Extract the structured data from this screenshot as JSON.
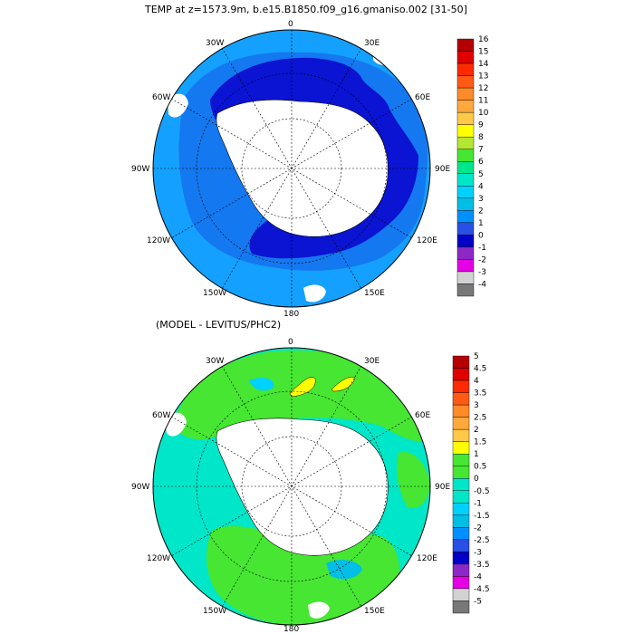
{
  "top_panel": {
    "title": "TEMP at z=1573.9m, b.e15.B1850.f09_g16.gmaniso.002 [31-50]",
    "longitude_labels": [
      "0",
      "30E",
      "60E",
      "90E",
      "120E",
      "150E",
      "180",
      "150W",
      "120W",
      "90W",
      "60W",
      "30W"
    ],
    "colorbar": {
      "labels": [
        "16",
        "15",
        "14",
        "13",
        "12",
        "11",
        "10",
        "9",
        "8",
        "7",
        "6",
        "5",
        "4",
        "3",
        "2",
        "1",
        "0",
        "-1",
        "-2",
        "-3",
        "-4"
      ],
      "colors": [
        "#b40000",
        "#e00000",
        "#ff2a00",
        "#ff5a14",
        "#ff8a28",
        "#ffa83c",
        "#ffc846",
        "#ffff00",
        "#b4e632",
        "#46e632",
        "#00e68c",
        "#00e6c8",
        "#00d2ff",
        "#00bee6",
        "#0090ff",
        "#2850e6",
        "#0000c8",
        "#8c28c8",
        "#e600e6",
        "#d2d2d2",
        "#787878"
      ]
    },
    "fields": {
      "deep_color": "#0a14d2",
      "mid_color": "#1478f0",
      "outer_color": "#14a0ff",
      "land_color": "#ffffff"
    }
  },
  "bottom_panel": {
    "title": "(MODEL - LEVITUS/PHC2)",
    "longitude_labels": [
      "0",
      "30E",
      "60E",
      "90E",
      "120E",
      "150E",
      "180",
      "150W",
      "120W",
      "90W",
      "60W",
      "30W"
    ],
    "colorbar": {
      "labels": [
        "5",
        "4.5",
        "4",
        "3.5",
        "3",
        "2.5",
        "2",
        "1.5",
        "1",
        "0.5",
        "0",
        "-0.5",
        "-1",
        "-1.5",
        "-2",
        "-2.5",
        "-3",
        "-3.5",
        "-4",
        "-4.5",
        "-5"
      ],
      "colors": [
        "#b40000",
        "#e00000",
        "#ff2a00",
        "#ff5a14",
        "#ff8a28",
        "#ffa83c",
        "#ffc846",
        "#ffff00",
        "#46e632",
        "#46e632",
        "#00e6c8",
        "#00e6c8",
        "#00d2ff",
        "#00bee6",
        "#0090ff",
        "#2850e6",
        "#0000c8",
        "#8c28c8",
        "#e600e6",
        "#d2d2d2",
        "#787878"
      ]
    },
    "fields": {
      "green_color": "#46e632",
      "cyan_color": "#00e6c8",
      "light_blue_color": "#00d2ff",
      "mid_blue_color": "#00bee6",
      "yellow_color": "#ffff00",
      "land_color": "#ffffff"
    }
  }
}
